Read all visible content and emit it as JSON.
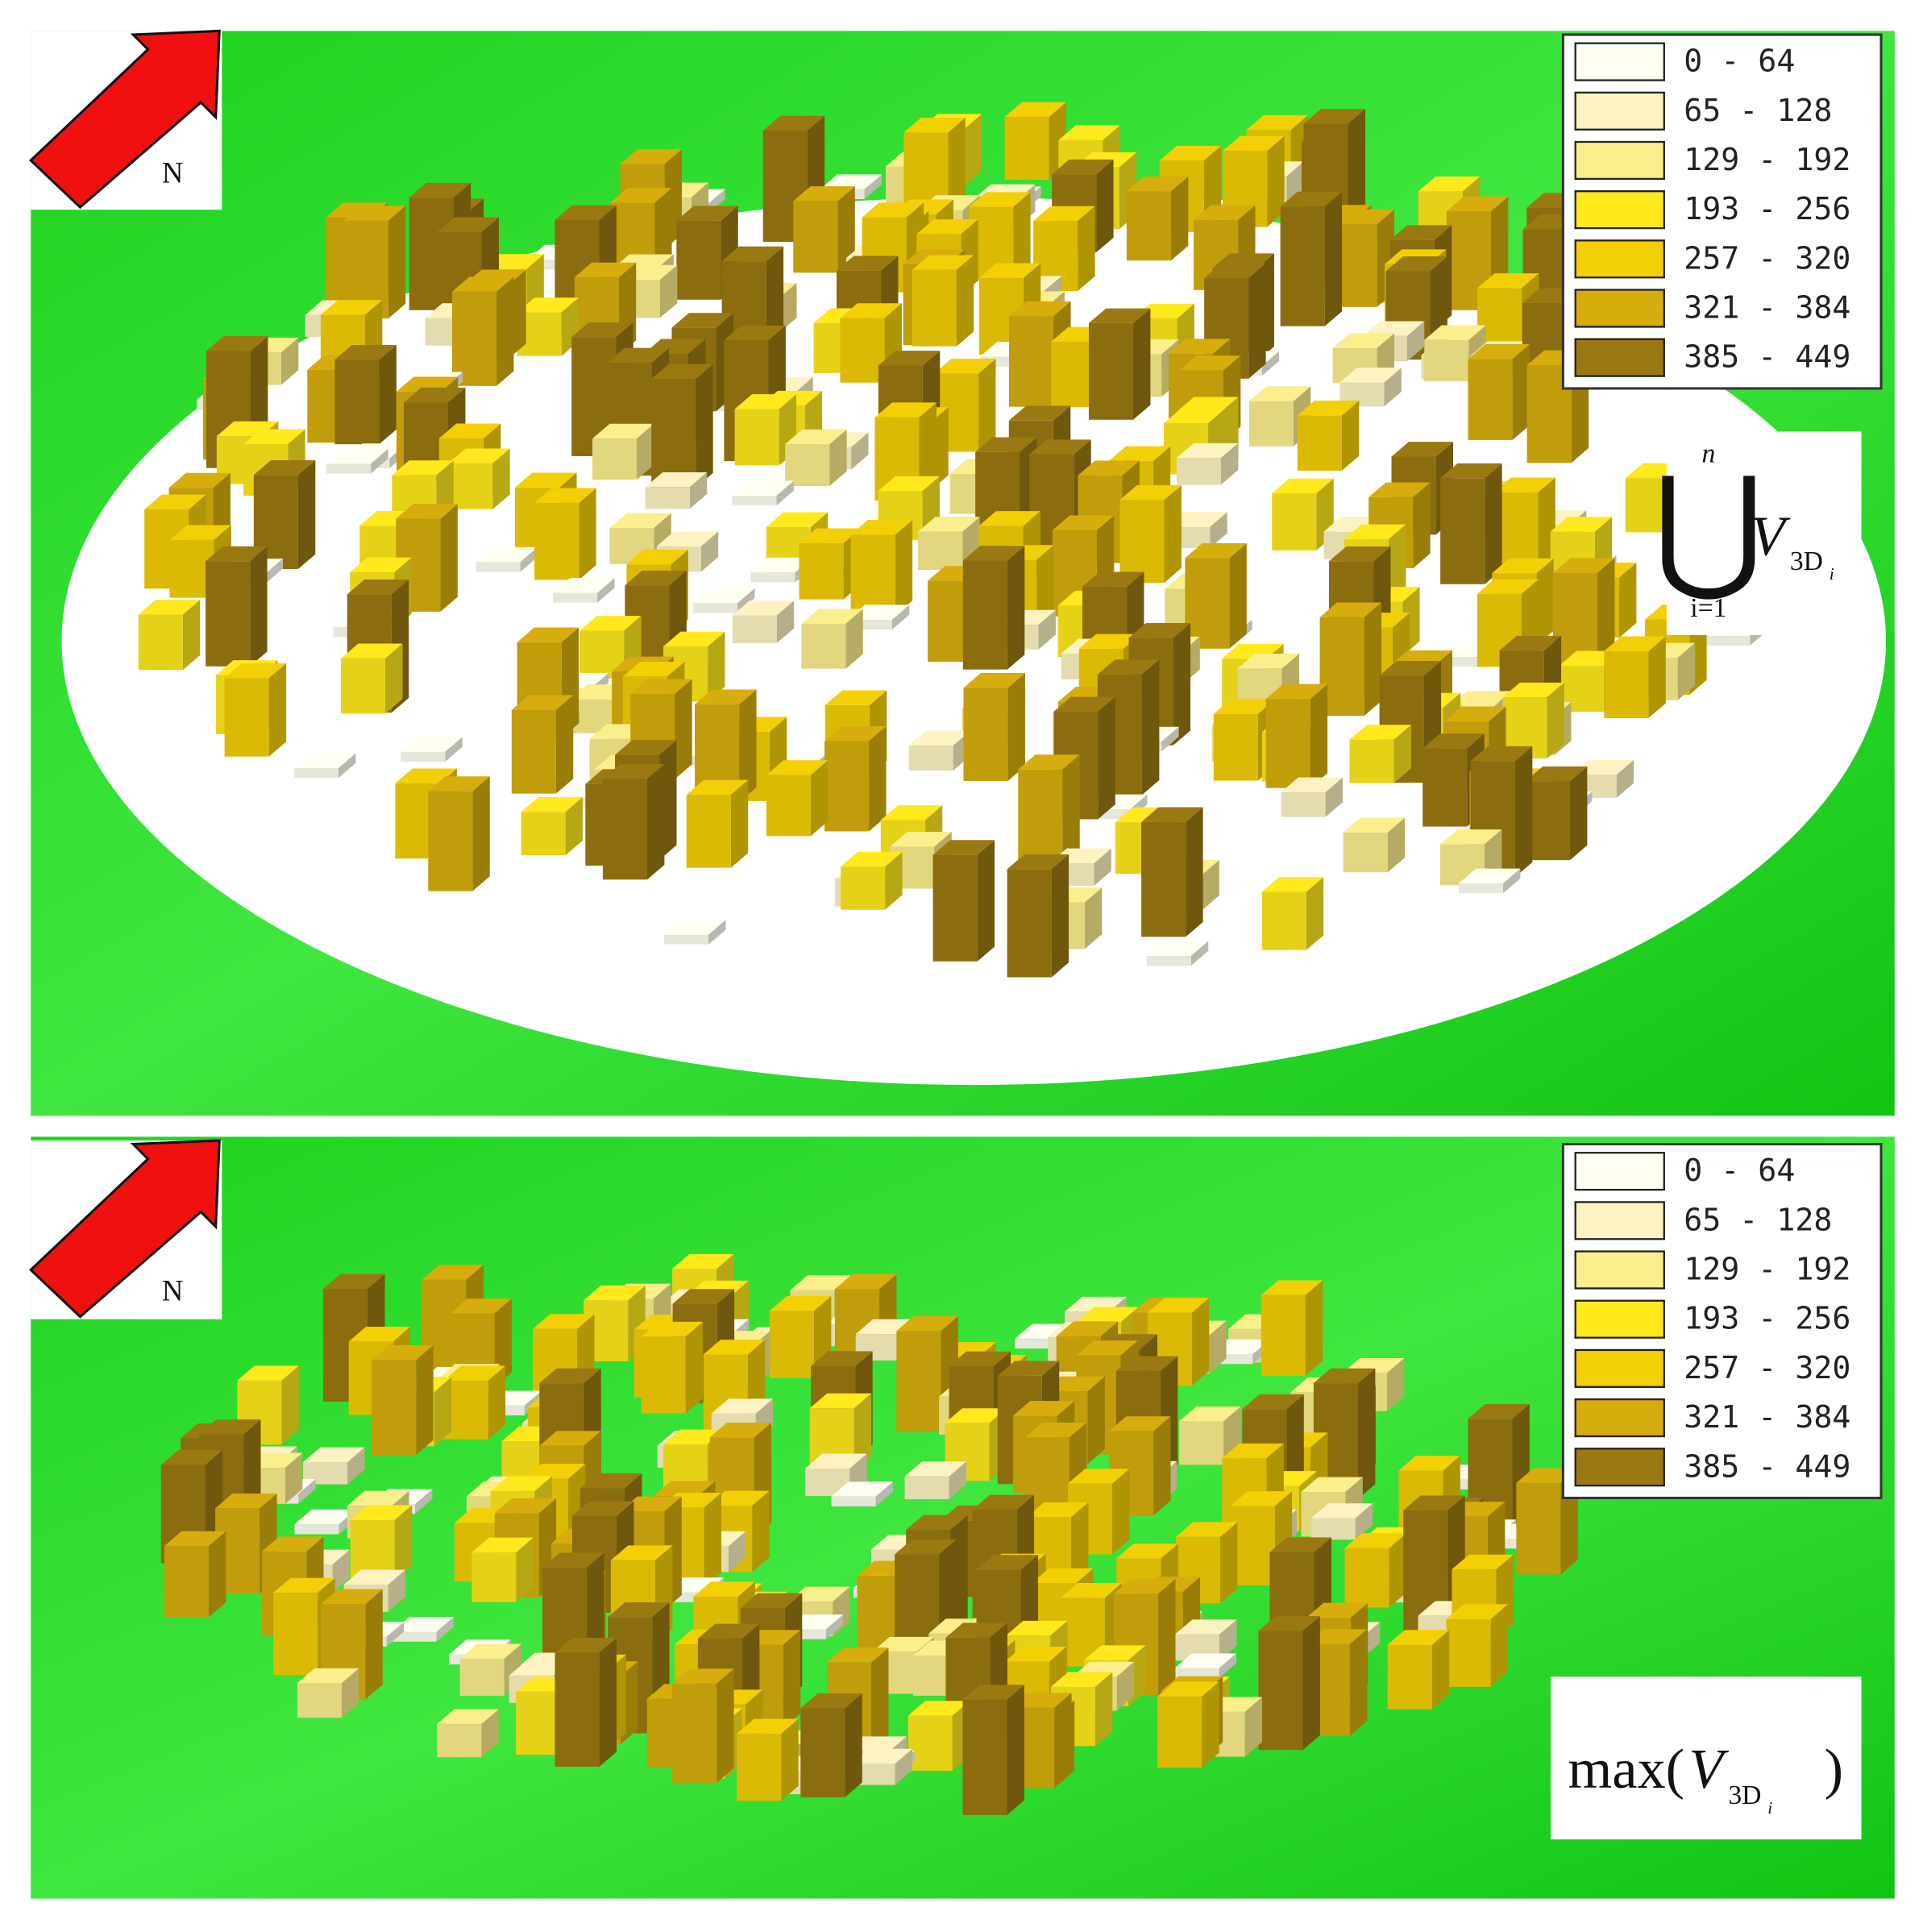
{
  "panels": [
    {
      "north_label": "N",
      "legend": {
        "entries": [
          {
            "label": "0 - 64",
            "color": "#fffff2"
          },
          {
            "label": "65 - 128",
            "color": "#fdf3c2"
          },
          {
            "label": "129 - 192",
            "color": "#fbee8c"
          },
          {
            "label": "193 - 256",
            "color": "#ffe81c"
          },
          {
            "label": "257 - 320",
            "color": "#f3cf05"
          },
          {
            "label": "321 - 384",
            "color": "#d6ad0c"
          },
          {
            "label": "385 - 449",
            "color": "#9a7912"
          }
        ]
      },
      "formula": {
        "operator": "⋃",
        "upper": "n",
        "lower": "i=1",
        "variable": "V",
        "subscript": "3D",
        "subsubscript": "i"
      }
    },
    {
      "north_label": "N",
      "legend": {
        "entries": [
          {
            "label": "0 - 64",
            "color": "#fffff2"
          },
          {
            "label": "65 - 128",
            "color": "#fdf3c2"
          },
          {
            "label": "129 - 192",
            "color": "#fbee8c"
          },
          {
            "label": "193 - 256",
            "color": "#ffe81c"
          },
          {
            "label": "257 - 320",
            "color": "#f3cf05"
          },
          {
            "label": "321 - 384",
            "color": "#d6ad0c"
          },
          {
            "label": "385 - 449",
            "color": "#9a7912"
          }
        ]
      },
      "formula": {
        "prefix": "max(",
        "variable": "V",
        "subscript": "3D",
        "subsubscript": "i",
        "suffix": ")"
      }
    }
  ]
}
